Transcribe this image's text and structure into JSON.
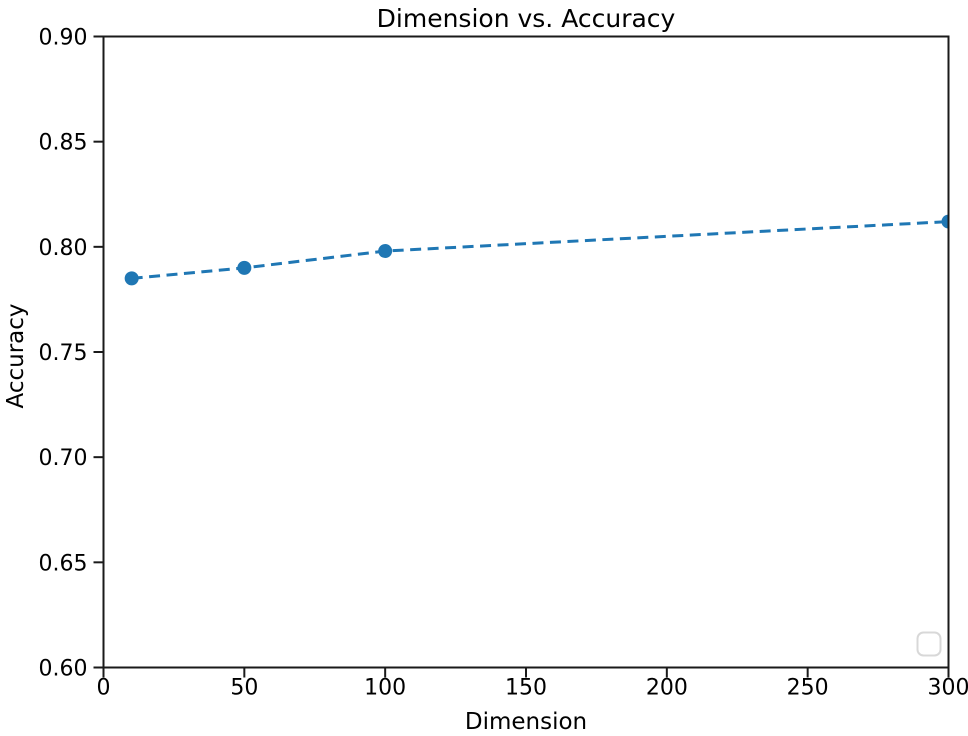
{
  "figure": {
    "background": "#ffffff"
  },
  "chart_data": {
    "type": "line",
    "title": "Dimension vs. Accuracy",
    "xlabel": "Dimension",
    "ylabel": "Accuracy",
    "x": [
      10,
      50,
      100,
      300
    ],
    "y": [
      0.785,
      0.79,
      0.798,
      0.812
    ],
    "xlim": [
      0,
      300
    ],
    "ylim": [
      0.6,
      0.9
    ],
    "xtick_labels": [
      "0",
      "50",
      "100",
      "150",
      "200",
      "250",
      "300"
    ],
    "ytick_labels": [
      "0.60",
      "0.65",
      "0.70",
      "0.75",
      "0.80",
      "0.85",
      "0.90"
    ],
    "line_color": "#1f77b4",
    "line_style": "dashed",
    "marker": "circle",
    "grid": false,
    "legend": {
      "visible": true,
      "position": "lower right",
      "entries": []
    },
    "axis_color": "#1a1a1a"
  }
}
